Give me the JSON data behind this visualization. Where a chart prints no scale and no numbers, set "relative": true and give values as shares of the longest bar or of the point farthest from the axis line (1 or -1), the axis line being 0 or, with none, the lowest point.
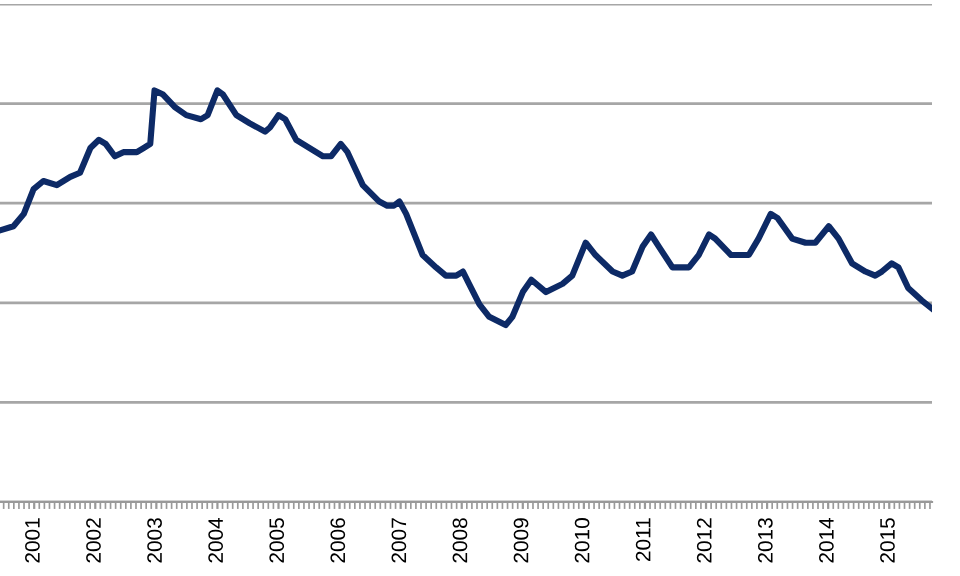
{
  "chart_data": {
    "type": "line",
    "relative": true,
    "grid": "y",
    "xlim": [
      2000.44,
      2015.7
    ],
    "xticks": [
      2001,
      2002,
      2003,
      2004,
      2005,
      2006,
      2007,
      2008,
      2009,
      2010,
      2011,
      2012,
      2013,
      2014,
      2015
    ],
    "series": [
      {
        "color": "#0d2a66",
        "x": [
          2000.44,
          2000.66,
          2000.83,
          2000.99,
          2001.15,
          2001.37,
          2001.59,
          2001.75,
          2001.92,
          2002.06,
          2002.17,
          2002.32,
          2002.46,
          2002.68,
          2002.79,
          2002.9,
          2002.97,
          2003.11,
          2003.3,
          2003.49,
          2003.73,
          2003.84,
          2004.0,
          2004.09,
          2004.31,
          2004.53,
          2004.78,
          2004.86,
          2005.0,
          2005.11,
          2005.29,
          2005.51,
          2005.73,
          2005.86,
          2006.02,
          2006.13,
          2006.38,
          2006.65,
          2006.78,
          2006.89,
          2006.98,
          2007.09,
          2007.36,
          2007.58,
          2007.74,
          2007.91,
          2008.02,
          2008.12,
          2008.29,
          2008.45,
          2008.72,
          2008.83,
          2009.0,
          2009.14,
          2009.38,
          2009.65,
          2009.81,
          2010.03,
          2010.19,
          2010.47,
          2010.63,
          2010.79,
          2010.96,
          2011.1,
          2011.23,
          2011.45,
          2011.72,
          2011.88,
          2012.05,
          2012.15,
          2012.41,
          2012.7,
          2012.86,
          2013.06,
          2013.17,
          2013.41,
          2013.63,
          2013.79,
          2014.01,
          2014.17,
          2014.39,
          2014.61,
          2014.77,
          2014.88,
          2015.04,
          2015.15,
          2015.31,
          2015.53,
          2015.7
        ],
        "values": [
          0.66,
          0.67,
          0.7,
          0.76,
          0.78,
          0.77,
          0.79,
          0.8,
          0.86,
          0.88,
          0.87,
          0.84,
          0.85,
          0.85,
          0.86,
          0.87,
          1.0,
          0.99,
          0.96,
          0.94,
          0.93,
          0.94,
          1.0,
          0.99,
          0.94,
          0.92,
          0.9,
          0.91,
          0.94,
          0.93,
          0.88,
          0.86,
          0.84,
          0.84,
          0.87,
          0.85,
          0.77,
          0.73,
          0.72,
          0.72,
          0.73,
          0.7,
          0.6,
          0.57,
          0.55,
          0.55,
          0.56,
          0.53,
          0.48,
          0.45,
          0.43,
          0.45,
          0.51,
          0.54,
          0.51,
          0.53,
          0.55,
          0.63,
          0.6,
          0.56,
          0.55,
          0.56,
          0.62,
          0.65,
          0.62,
          0.57,
          0.57,
          0.6,
          0.65,
          0.64,
          0.6,
          0.6,
          0.64,
          0.7,
          0.69,
          0.64,
          0.63,
          0.63,
          0.67,
          0.64,
          0.58,
          0.56,
          0.55,
          0.56,
          0.58,
          0.57,
          0.52,
          0.49,
          0.47
        ]
      }
    ]
  }
}
